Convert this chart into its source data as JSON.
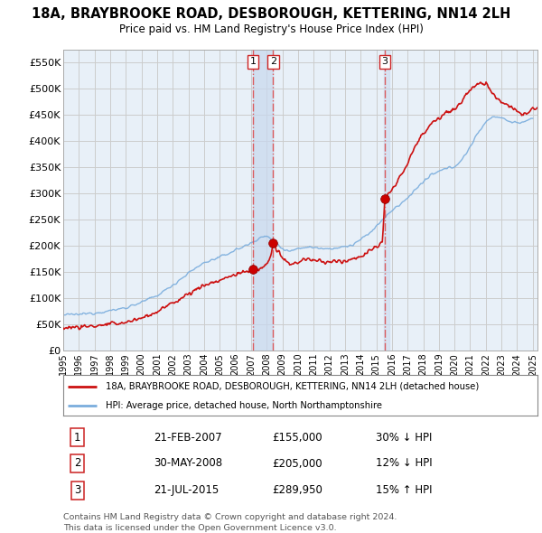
{
  "title": "18A, BRAYBROOKE ROAD, DESBOROUGH, KETTERING, NN14 2LH",
  "subtitle": "Price paid vs. HM Land Registry's House Price Index (HPI)",
  "ylim": [
    0,
    575000
  ],
  "yticks": [
    0,
    50000,
    100000,
    150000,
    200000,
    250000,
    300000,
    350000,
    400000,
    450000,
    500000,
    550000
  ],
  "ytick_labels": [
    "£0",
    "£50K",
    "£100K",
    "£150K",
    "£200K",
    "£250K",
    "£300K",
    "£350K",
    "£400K",
    "£450K",
    "£500K",
    "£550K"
  ],
  "transactions": [
    {
      "num": 1,
      "date": "21-FEB-2007",
      "year": 2007.13,
      "price": 155000,
      "label": "30% ↓ HPI"
    },
    {
      "num": 2,
      "date": "30-MAY-2008",
      "year": 2008.41,
      "price": 205000,
      "label": "12% ↓ HPI"
    },
    {
      "num": 3,
      "date": "21-JUL-2015",
      "year": 2015.55,
      "price": 289950,
      "label": "15% ↑ HPI"
    }
  ],
  "vline_color": "#dd4444",
  "vline_style": "-.",
  "transaction_marker_color": "#cc0000",
  "hpi_line_color": "#7aaddd",
  "price_line_color": "#cc1111",
  "grid_color": "#cccccc",
  "legend_red_label": "18A, BRAYBROOKE ROAD, DESBOROUGH, KETTERING, NN14 2LH (detached house)",
  "legend_blue_label": "HPI: Average price, detached house, North Northamptonshire",
  "footer1": "Contains HM Land Registry data © Crown copyright and database right 2024.",
  "footer2": "This data is licensed under the Open Government Licence v3.0.",
  "bg_color": "#ffffff",
  "plot_bg_color": "#e8f0f8",
  "shade_color": "#c8d8ee",
  "xlim_left": 1995.0,
  "xlim_right": 2025.3
}
